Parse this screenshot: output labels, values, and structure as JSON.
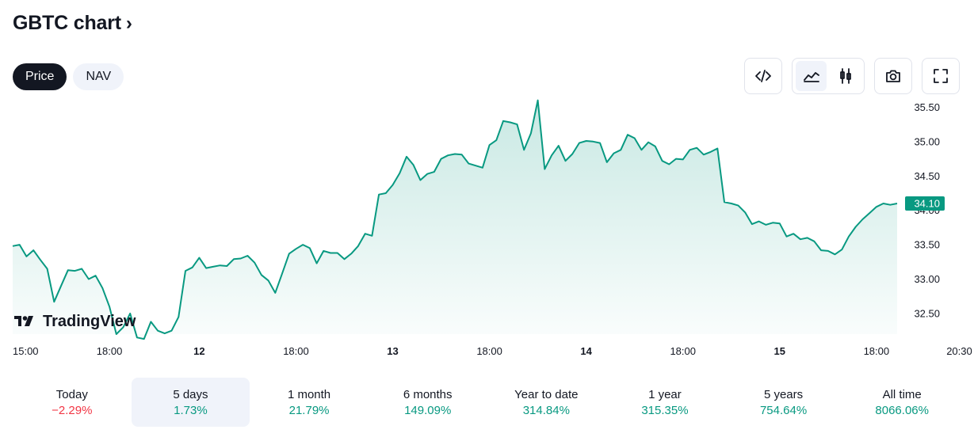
{
  "header": {
    "title": "GBTC chart",
    "chevron": "›"
  },
  "tabs": [
    {
      "label": "Price",
      "active": true
    },
    {
      "label": "NAV",
      "active": false
    }
  ],
  "toolbar": {
    "embed_icon": "code-icon",
    "area_icon": "area-chart-icon",
    "candle_icon": "candlestick-icon",
    "camera_icon": "camera-icon",
    "fullscreen_icon": "fullscreen-icon"
  },
  "brand": {
    "watermark": "TradingView"
  },
  "colors": {
    "line": "#089981",
    "area": "#089981",
    "negative": "#f23645",
    "text": "#131722"
  },
  "chart_data": {
    "type": "area",
    "y_ticks": [
      "35.50",
      "35.00",
      "34.50",
      "34.00",
      "33.50",
      "33.00",
      "32.50"
    ],
    "ylim": [
      32.2,
      35.62
    ],
    "x_ticks": [
      {
        "label": "15:00",
        "bold": false,
        "at": 1
      },
      {
        "label": "18:00",
        "bold": false,
        "at": 14
      },
      {
        "label": "12",
        "bold": true,
        "at": 27
      },
      {
        "label": "18:00",
        "bold": false,
        "at": 41
      },
      {
        "label": "13",
        "bold": true,
        "at": 55
      },
      {
        "label": "18:00",
        "bold": false,
        "at": 69
      },
      {
        "label": "14",
        "bold": true,
        "at": 83
      },
      {
        "label": "18:00",
        "bold": false,
        "at": 97
      },
      {
        "label": "15",
        "bold": true,
        "at": 111
      },
      {
        "label": "18:00",
        "bold": false,
        "at": 125
      },
      {
        "label": "20:30",
        "bold": false,
        "at": 137
      }
    ],
    "last_price": "34.10",
    "values": [
      33.48,
      33.5,
      33.33,
      33.42,
      33.28,
      33.15,
      32.67,
      32.9,
      33.13,
      33.12,
      33.15,
      33.0,
      33.05,
      32.87,
      32.6,
      32.2,
      32.3,
      32.5,
      32.15,
      32.13,
      32.38,
      32.25,
      32.21,
      32.25,
      32.45,
      33.12,
      33.17,
      33.31,
      33.16,
      33.18,
      33.2,
      33.19,
      33.29,
      33.3,
      33.34,
      33.24,
      33.06,
      32.98,
      32.8,
      33.08,
      33.37,
      33.44,
      33.5,
      33.45,
      33.23,
      33.41,
      33.38,
      33.38,
      33.29,
      33.37,
      33.48,
      33.66,
      33.63,
      34.23,
      34.25,
      34.37,
      34.54,
      34.78,
      34.66,
      34.44,
      34.53,
      34.56,
      34.75,
      34.8,
      34.82,
      34.81,
      34.68,
      34.65,
      34.62,
      34.95,
      35.02,
      35.3,
      35.28,
      35.25,
      34.88,
      35.12,
      35.6,
      34.6,
      34.8,
      34.94,
      34.72,
      34.82,
      34.98,
      35.01,
      35.0,
      34.98,
      34.7,
      34.83,
      34.88,
      35.1,
      35.05,
      34.88,
      34.99,
      34.93,
      34.72,
      34.67,
      34.75,
      34.74,
      34.88,
      34.91,
      34.81,
      34.85,
      34.9,
      34.12,
      34.1,
      34.07,
      33.97,
      33.8,
      33.84,
      33.79,
      33.82,
      33.81,
      33.62,
      33.66,
      33.58,
      33.6,
      33.55,
      33.42,
      33.41,
      33.36,
      33.43,
      33.62,
      33.76,
      33.87,
      33.96,
      34.05,
      34.1,
      34.08,
      34.1
    ]
  },
  "periods": [
    {
      "label": "Today",
      "value": "−2.29%",
      "trend": "neg",
      "active": false
    },
    {
      "label": "5 days",
      "value": "1.73%",
      "trend": "pos",
      "active": true
    },
    {
      "label": "1 month",
      "value": "21.79%",
      "trend": "pos",
      "active": false
    },
    {
      "label": "6 months",
      "value": "149.09%",
      "trend": "pos",
      "active": false
    },
    {
      "label": "Year to date",
      "value": "314.84%",
      "trend": "pos",
      "active": false
    },
    {
      "label": "1 year",
      "value": "315.35%",
      "trend": "pos",
      "active": false
    },
    {
      "label": "5 years",
      "value": "754.64%",
      "trend": "pos",
      "active": false
    },
    {
      "label": "All time",
      "value": "8066.06%",
      "trend": "pos",
      "active": false
    }
  ]
}
